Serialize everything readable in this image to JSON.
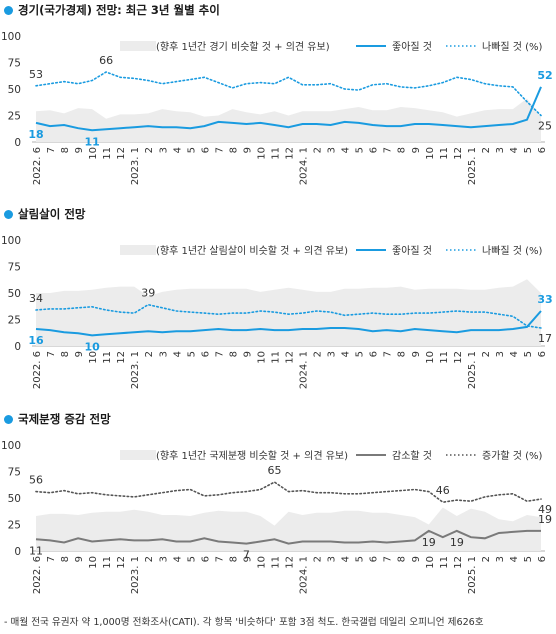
{
  "colors": {
    "accent": "#1a9be0",
    "dark_line": "#7a7a7a",
    "dotted_dark": "#555555",
    "band": "#ececec"
  },
  "footnote": "- 매월 전국 유권자 약 1,000명 전화조사(CATI). 각 항목 '비슷하다' 포함 3점 척도. 한국갤럽 데일리 오피니언 제626호",
  "chart_data": [
    {
      "title": "경기(국가경제) 전망: 최근 3년 월별 추이",
      "type": "line",
      "ylim": [
        0,
        100
      ],
      "yticks": [
        "0",
        "25",
        "50",
        "75",
        "100"
      ],
      "x_labels": [
        "2022. 6",
        "7",
        "8",
        "9",
        "10",
        "11",
        "12",
        "2023. 1",
        "2",
        "3",
        "4",
        "5",
        "6",
        "7",
        "8",
        "9",
        "10",
        "11",
        "12",
        "2024. 1",
        "2",
        "3",
        "4",
        "5",
        "6",
        "7",
        "8",
        "9",
        "10",
        "11",
        "12",
        "2025. 1",
        "2",
        "3",
        "4",
        "5",
        "6"
      ],
      "legend": {
        "band": "(향후 1년간 경기 비슷할 것 + 의견 유보)",
        "up": "좋아질 것",
        "down": "나빠질 것 (%)"
      },
      "series": [
        {
          "name": "좋아질 것",
          "style": "solid-blue",
          "values": [
            18,
            15,
            16,
            13,
            11,
            12,
            13,
            14,
            15,
            14,
            14,
            13,
            15,
            19,
            18,
            17,
            18,
            16,
            14,
            17,
            17,
            16,
            19,
            18,
            16,
            15,
            15,
            17,
            17,
            16,
            15,
            14,
            15,
            16,
            17,
            21,
            52
          ]
        },
        {
          "name": "나빠질 것 (%)",
          "style": "dotted-blue",
          "values": [
            53,
            55,
            57,
            55,
            58,
            66,
            61,
            60,
            58,
            55,
            57,
            59,
            61,
            56,
            51,
            55,
            56,
            55,
            61,
            54,
            54,
            55,
            50,
            49,
            54,
            55,
            52,
            51,
            53,
            56,
            61,
            59,
            55,
            53,
            52,
            38,
            25
          ]
        }
      ],
      "point_labels": [
        {
          "series": 0,
          "index": 0,
          "text": "18"
        },
        {
          "series": 0,
          "index": 4,
          "text": "11"
        },
        {
          "series": 0,
          "index": 36,
          "text": "52"
        },
        {
          "series": 1,
          "index": 0,
          "text": "53"
        },
        {
          "series": 1,
          "index": 5,
          "text": "66"
        },
        {
          "series": 1,
          "index": 36,
          "text": "25"
        }
      ]
    },
    {
      "title": "살림살이 전망",
      "type": "line",
      "ylim": [
        0,
        100
      ],
      "yticks": [
        "0",
        "25",
        "50",
        "75",
        "100"
      ],
      "x_labels": [
        "2022. 6",
        "7",
        "8",
        "9",
        "10",
        "11",
        "12",
        "2023. 1",
        "2",
        "3",
        "4",
        "5",
        "6",
        "7",
        "8",
        "9",
        "10",
        "11",
        "12",
        "2024. 1",
        "2",
        "3",
        "4",
        "5",
        "6",
        "7",
        "8",
        "9",
        "10",
        "11",
        "12",
        "2025. 1",
        "2",
        "3",
        "4",
        "5",
        "6"
      ],
      "legend": {
        "band": "(향후 1년간 살림살이 비슷할 것 + 의견 유보)",
        "up": "좋아질 것",
        "down": "나빠질 것 (%)"
      },
      "series": [
        {
          "name": "좋아질 것",
          "style": "solid-blue",
          "values": [
            16,
            15,
            13,
            12,
            10,
            11,
            12,
            13,
            14,
            13,
            14,
            14,
            15,
            16,
            15,
            15,
            16,
            15,
            15,
            16,
            16,
            17,
            17,
            16,
            14,
            15,
            14,
            16,
            15,
            14,
            13,
            15,
            15,
            15,
            16,
            18,
            33
          ]
        },
        {
          "name": "나빠질 것 (%)",
          "style": "dotted-blue",
          "values": [
            34,
            35,
            35,
            36,
            37,
            34,
            32,
            31,
            39,
            36,
            33,
            32,
            31,
            30,
            31,
            31,
            33,
            32,
            30,
            31,
            33,
            32,
            29,
            30,
            31,
            30,
            30,
            31,
            31,
            32,
            33,
            32,
            32,
            30,
            28,
            19,
            17
          ]
        }
      ],
      "point_labels": [
        {
          "series": 0,
          "index": 0,
          "text": "16"
        },
        {
          "series": 0,
          "index": 4,
          "text": "10"
        },
        {
          "series": 0,
          "index": 36,
          "text": "33"
        },
        {
          "series": 1,
          "index": 0,
          "text": "34"
        },
        {
          "series": 1,
          "index": 8,
          "text": "39"
        },
        {
          "series": 1,
          "index": 36,
          "text": "17"
        }
      ]
    },
    {
      "title": "국제분쟁 증감 전망",
      "type": "line",
      "ylim": [
        0,
        100
      ],
      "yticks": [
        "0",
        "25",
        "50",
        "75",
        "100"
      ],
      "x_labels": [
        "2022. 6",
        "7",
        "8",
        "9",
        "10",
        "11",
        "12",
        "2023. 1",
        "2",
        "3",
        "4",
        "5",
        "6",
        "7",
        "8",
        "9",
        "10",
        "11",
        "12",
        "2024. 1",
        "2",
        "3",
        "4",
        "5",
        "6",
        "7",
        "8",
        "9",
        "10",
        "11",
        "12",
        "2025. 1",
        "2",
        "3",
        "4",
        "5",
        "6"
      ],
      "legend": {
        "band": "(향후 1년간 국제분쟁 비슷할 것 + 의견 유보)",
        "up": "감소할 것",
        "down": "증가할 것 (%)"
      },
      "series": [
        {
          "name": "감소할 것",
          "style": "solid-gray",
          "values": [
            11,
            10,
            8,
            12,
            9,
            10,
            11,
            10,
            10,
            11,
            9,
            9,
            12,
            9,
            8,
            7,
            9,
            11,
            7,
            9,
            9,
            9,
            8,
            8,
            9,
            8,
            9,
            10,
            19,
            13,
            19,
            13,
            12,
            17,
            18,
            19,
            19
          ]
        },
        {
          "name": "증가할 것 (%)",
          "style": "dotted-dark",
          "values": [
            56,
            55,
            57,
            54,
            55,
            53,
            52,
            51,
            53,
            55,
            57,
            58,
            52,
            53,
            55,
            56,
            58,
            65,
            56,
            57,
            55,
            55,
            54,
            54,
            55,
            56,
            57,
            58,
            56,
            46,
            48,
            47,
            51,
            53,
            54,
            47,
            49
          ]
        }
      ],
      "point_labels": [
        {
          "series": 0,
          "index": 0,
          "text": "11"
        },
        {
          "series": 0,
          "index": 15,
          "text": "7"
        },
        {
          "series": 0,
          "index": 28,
          "text": "19"
        },
        {
          "series": 0,
          "index": 30,
          "text": "19"
        },
        {
          "series": 0,
          "index": 36,
          "text": "19"
        },
        {
          "series": 1,
          "index": 0,
          "text": "56"
        },
        {
          "series": 1,
          "index": 17,
          "text": "65"
        },
        {
          "series": 1,
          "index": 29,
          "text": "46"
        },
        {
          "series": 1,
          "index": 36,
          "text": "49"
        }
      ]
    }
  ]
}
